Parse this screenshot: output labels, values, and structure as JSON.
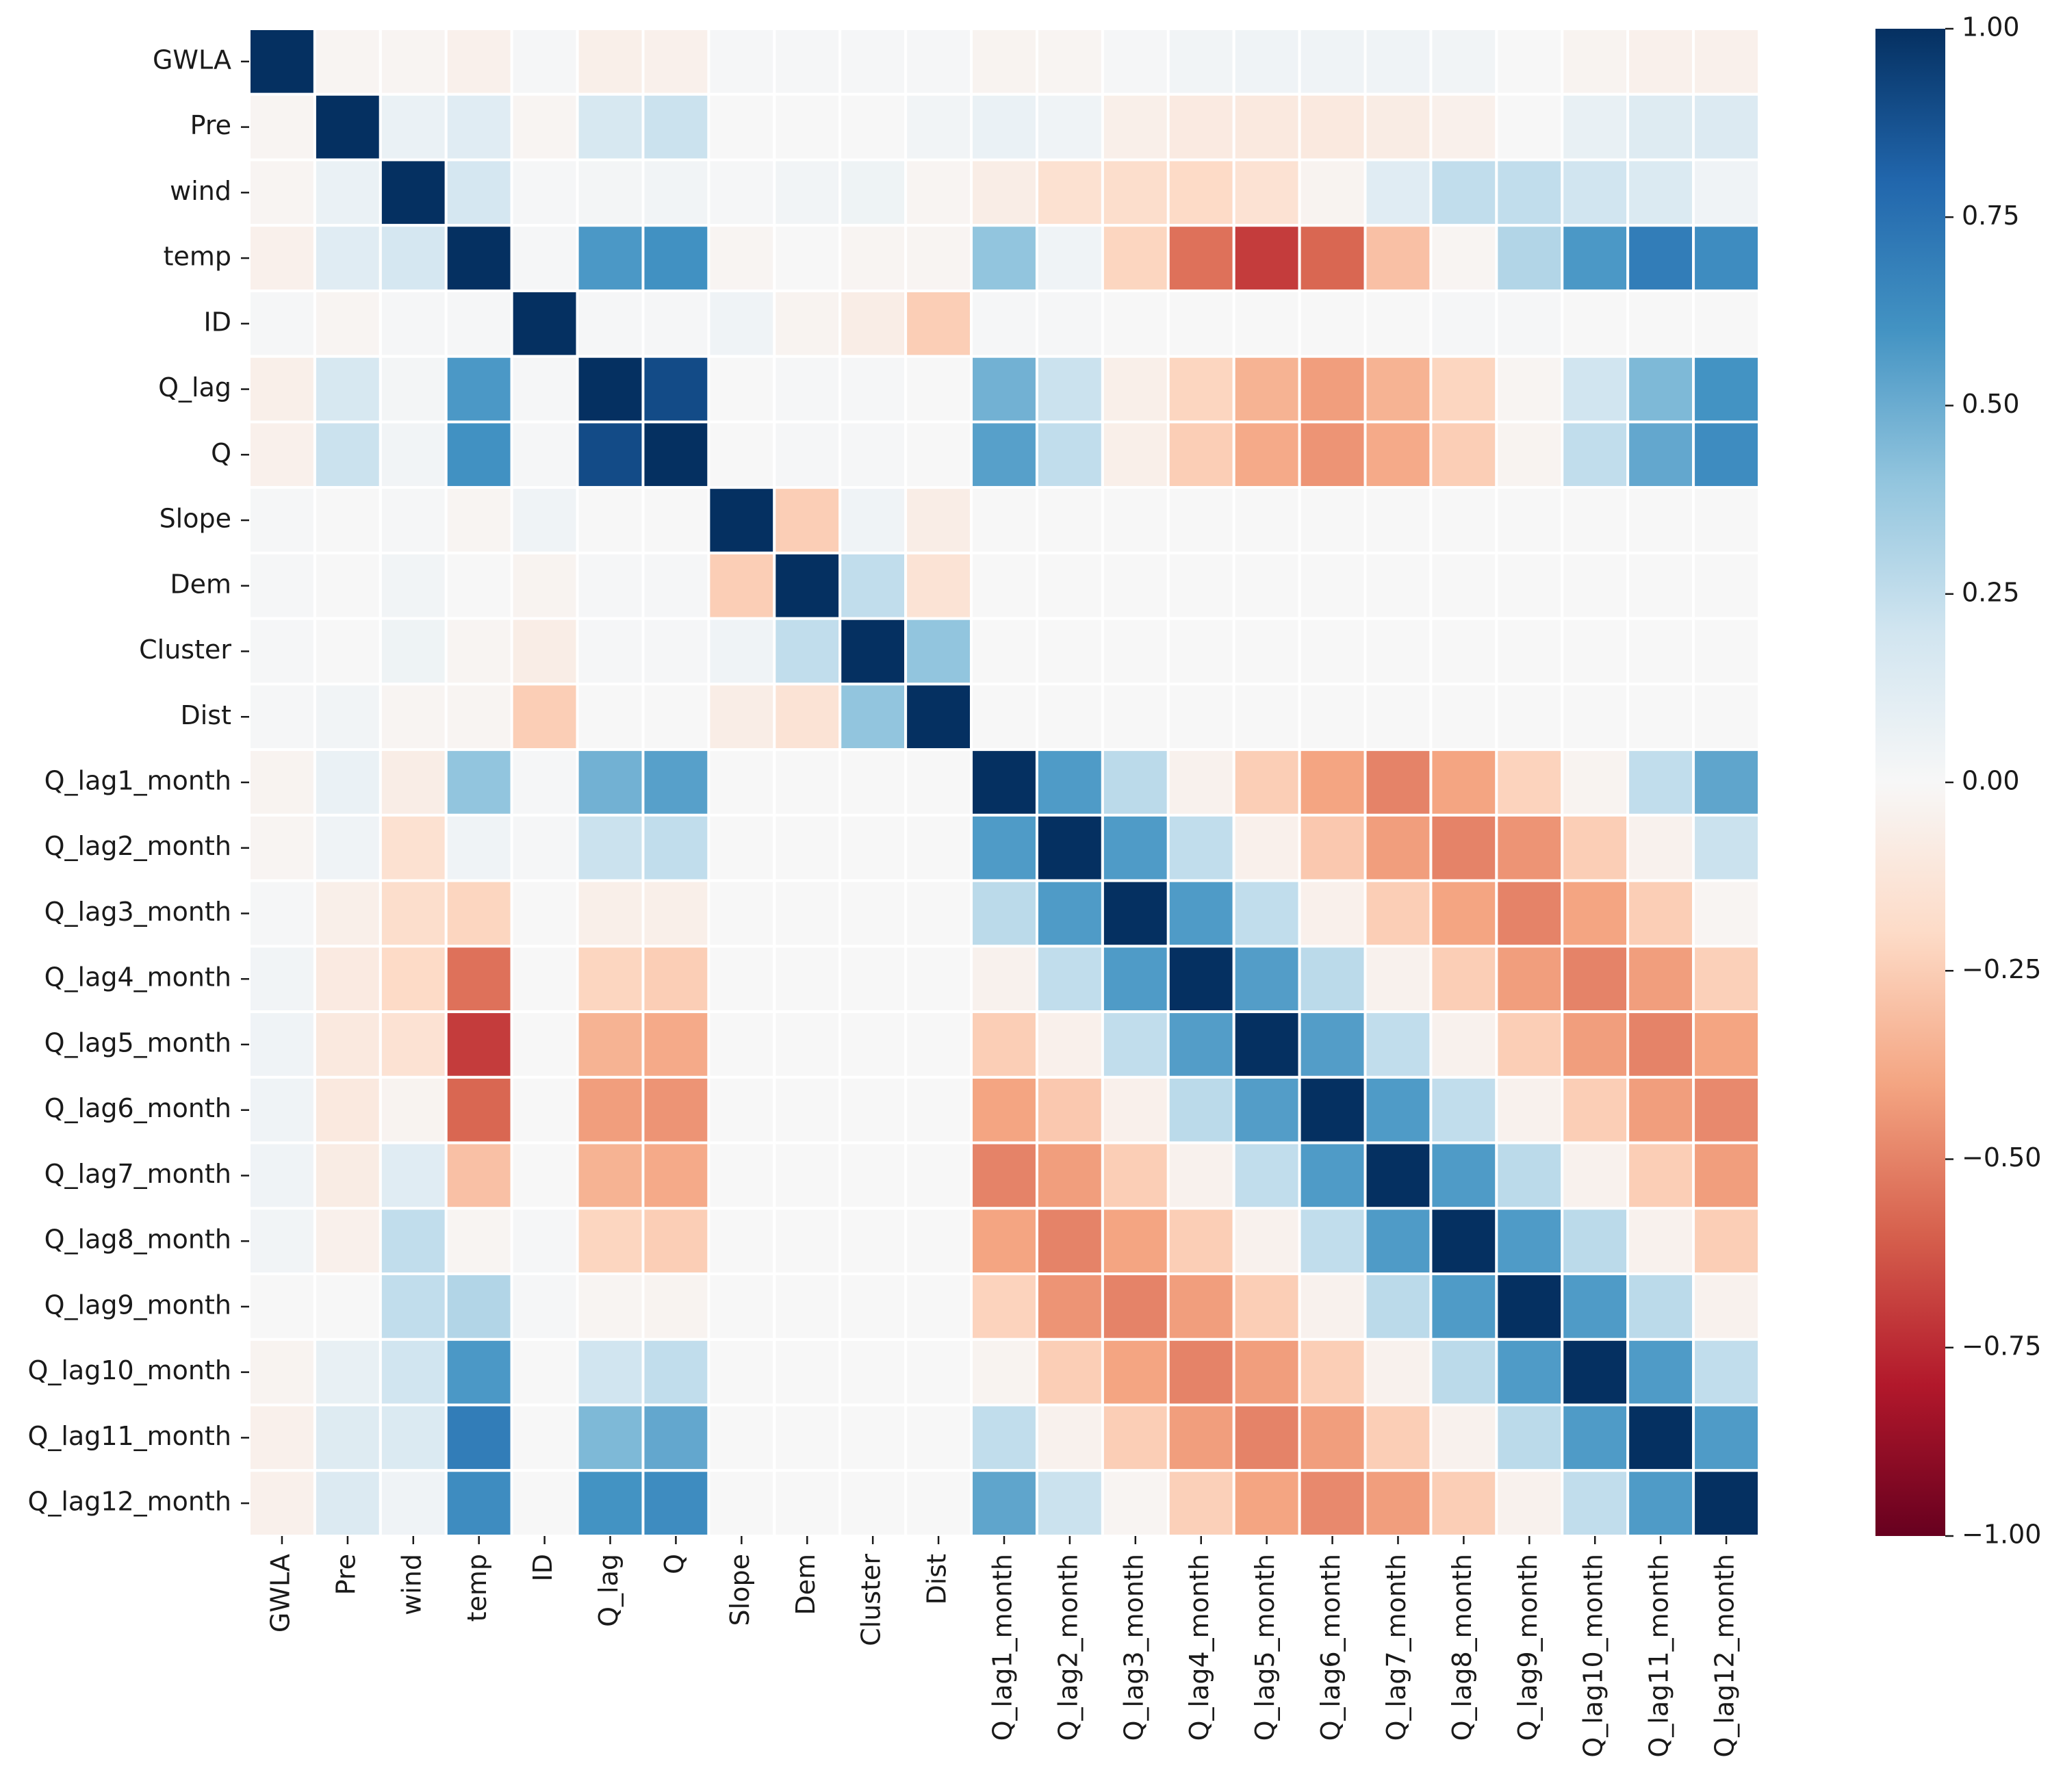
{
  "chart_data": {
    "type": "heatmap",
    "title": "",
    "xlabel": "",
    "ylabel": "",
    "labels": [
      "GWLA",
      "Pre",
      "wind",
      "temp",
      "ID",
      "Q_lag",
      "Q",
      "Slope",
      "Dem",
      "Cluster",
      "Dist",
      "Q_lag1_month",
      "Q_lag2_month",
      "Q_lag3_month",
      "Q_lag4_month",
      "Q_lag5_month",
      "Q_lag6_month",
      "Q_lag7_month",
      "Q_lag8_month",
      "Q_lag9_month",
      "Q_lag10_month",
      "Q_lag11_month",
      "Q_lag12_month"
    ],
    "matrix": [
      [
        1.0,
        -0.02,
        -0.02,
        -0.05,
        0.01,
        -0.06,
        -0.05,
        0.01,
        0.01,
        0.01,
        0.01,
        -0.03,
        -0.02,
        0.01,
        0.03,
        0.04,
        0.04,
        0.04,
        0.03,
        0.0,
        -0.03,
        -0.05,
        -0.05
      ],
      [
        -0.02,
        1.0,
        0.07,
        0.12,
        -0.02,
        0.17,
        0.22,
        0.0,
        0.0,
        0.0,
        0.03,
        0.07,
        0.04,
        -0.06,
        -0.09,
        -0.1,
        -0.1,
        -0.08,
        -0.05,
        0.0,
        0.08,
        0.13,
        0.14
      ],
      [
        -0.02,
        0.07,
        1.0,
        0.18,
        0.01,
        0.02,
        0.03,
        0.01,
        0.03,
        0.05,
        -0.02,
        -0.07,
        -0.16,
        -0.18,
        -0.2,
        -0.15,
        -0.03,
        0.12,
        0.25,
        0.25,
        0.2,
        0.15,
        0.04
      ],
      [
        -0.05,
        0.12,
        0.18,
        1.0,
        0.01,
        0.58,
        0.61,
        -0.02,
        0.0,
        -0.02,
        -0.02,
        0.4,
        0.04,
        -0.22,
        -0.55,
        -0.7,
        -0.58,
        -0.3,
        -0.02,
        0.3,
        0.58,
        0.7,
        0.63
      ],
      [
        0.01,
        -0.02,
        0.01,
        0.01,
        1.0,
        0.01,
        0.01,
        0.04,
        -0.03,
        -0.07,
        -0.25,
        0.01,
        0.01,
        0.0,
        0.0,
        0.0,
        0.0,
        0.0,
        0.01,
        0.01,
        0.0,
        0.0,
        0.0
      ],
      [
        -0.06,
        0.17,
        0.02,
        0.58,
        0.01,
        1.0,
        0.9,
        0.0,
        0.01,
        0.01,
        0.0,
        0.48,
        0.22,
        -0.06,
        -0.22,
        -0.35,
        -0.42,
        -0.35,
        -0.22,
        -0.02,
        0.2,
        0.45,
        0.6
      ],
      [
        -0.05,
        0.22,
        0.03,
        0.61,
        0.01,
        0.9,
        1.0,
        0.0,
        0.01,
        0.01,
        0.0,
        0.55,
        0.25,
        -0.06,
        -0.25,
        -0.38,
        -0.45,
        -0.38,
        -0.25,
        -0.03,
        0.25,
        0.52,
        0.63
      ],
      [
        0.01,
        0.0,
        0.01,
        -0.02,
        0.04,
        0.0,
        0.0,
        1.0,
        -0.25,
        0.04,
        -0.07,
        0.0,
        0.0,
        0.0,
        0.0,
        0.0,
        0.0,
        0.0,
        0.0,
        0.0,
        0.0,
        0.0,
        0.0
      ],
      [
        0.01,
        0.0,
        0.03,
        0.0,
        -0.03,
        0.01,
        0.01,
        -0.25,
        1.0,
        0.25,
        -0.14,
        0.0,
        0.0,
        0.0,
        0.0,
        0.0,
        0.0,
        0.0,
        0.0,
        0.0,
        0.0,
        0.0,
        0.0
      ],
      [
        0.01,
        0.0,
        0.05,
        -0.02,
        -0.07,
        0.01,
        0.01,
        0.04,
        0.25,
        1.0,
        0.4,
        0.0,
        0.0,
        0.0,
        0.0,
        0.0,
        0.0,
        0.0,
        0.0,
        0.0,
        0.0,
        0.0,
        0.0
      ],
      [
        0.01,
        0.03,
        -0.02,
        -0.02,
        -0.25,
        0.0,
        0.0,
        -0.07,
        -0.14,
        0.4,
        1.0,
        0.0,
        0.0,
        0.0,
        0.0,
        0.0,
        0.0,
        0.0,
        0.0,
        0.0,
        0.0,
        0.0,
        0.0
      ],
      [
        -0.03,
        0.07,
        -0.07,
        0.4,
        0.01,
        0.48,
        0.55,
        0.0,
        0.0,
        0.0,
        0.0,
        1.0,
        0.57,
        0.27,
        -0.04,
        -0.25,
        -0.4,
        -0.5,
        -0.4,
        -0.23,
        -0.03,
        0.25,
        0.53
      ],
      [
        -0.02,
        0.04,
        -0.16,
        0.04,
        0.01,
        0.22,
        0.25,
        0.0,
        0.0,
        0.0,
        0.0,
        0.57,
        1.0,
        0.57,
        0.25,
        -0.05,
        -0.27,
        -0.42,
        -0.5,
        -0.45,
        -0.25,
        -0.04,
        0.22
      ],
      [
        0.01,
        -0.06,
        -0.18,
        -0.22,
        0.0,
        -0.06,
        -0.06,
        0.0,
        0.0,
        0.0,
        0.0,
        0.27,
        0.57,
        1.0,
        0.57,
        0.25,
        -0.05,
        -0.25,
        -0.4,
        -0.5,
        -0.4,
        -0.25,
        -0.02
      ],
      [
        0.03,
        -0.09,
        -0.2,
        -0.55,
        0.0,
        -0.22,
        -0.25,
        0.0,
        0.0,
        0.0,
        0.0,
        -0.04,
        0.25,
        0.57,
        1.0,
        0.56,
        0.27,
        -0.04,
        -0.25,
        -0.42,
        -0.5,
        -0.42,
        -0.24
      ],
      [
        0.04,
        -0.1,
        -0.15,
        -0.7,
        0.0,
        -0.35,
        -0.38,
        0.0,
        0.0,
        0.0,
        0.0,
        -0.25,
        -0.05,
        0.25,
        0.56,
        1.0,
        0.56,
        0.25,
        -0.04,
        -0.25,
        -0.42,
        -0.5,
        -0.4
      ],
      [
        0.04,
        -0.1,
        -0.03,
        -0.58,
        0.0,
        -0.42,
        -0.45,
        0.0,
        0.0,
        0.0,
        0.0,
        -0.4,
        -0.27,
        -0.05,
        0.27,
        0.56,
        1.0,
        0.57,
        0.25,
        -0.04,
        -0.25,
        -0.42,
        -0.48
      ],
      [
        0.04,
        -0.08,
        0.12,
        -0.3,
        0.0,
        -0.35,
        -0.38,
        0.0,
        0.0,
        0.0,
        0.0,
        -0.5,
        -0.42,
        -0.25,
        -0.04,
        0.25,
        0.57,
        1.0,
        0.57,
        0.27,
        -0.04,
        -0.25,
        -0.42
      ],
      [
        0.03,
        -0.05,
        0.25,
        -0.02,
        0.01,
        -0.22,
        -0.25,
        0.0,
        0.0,
        0.0,
        0.0,
        -0.4,
        -0.5,
        -0.4,
        -0.25,
        -0.04,
        0.25,
        0.57,
        1.0,
        0.57,
        0.27,
        -0.04,
        -0.25
      ],
      [
        0.0,
        0.0,
        0.25,
        0.3,
        0.01,
        -0.02,
        -0.03,
        0.0,
        0.0,
        0.0,
        0.0,
        -0.23,
        -0.45,
        -0.5,
        -0.42,
        -0.25,
        -0.04,
        0.27,
        0.57,
        1.0,
        0.57,
        0.27,
        -0.04
      ],
      [
        -0.03,
        0.08,
        0.2,
        0.58,
        0.0,
        0.2,
        0.25,
        0.0,
        0.0,
        0.0,
        0.0,
        -0.03,
        -0.25,
        -0.4,
        -0.5,
        -0.42,
        -0.25,
        -0.04,
        0.27,
        0.57,
        1.0,
        0.57,
        0.25
      ],
      [
        -0.05,
        0.13,
        0.15,
        0.7,
        0.0,
        0.45,
        0.52,
        0.0,
        0.0,
        0.0,
        0.0,
        0.25,
        -0.04,
        -0.25,
        -0.42,
        -0.5,
        -0.42,
        -0.25,
        -0.04,
        0.27,
        0.57,
        1.0,
        0.57
      ],
      [
        -0.05,
        0.14,
        0.04,
        0.63,
        0.0,
        0.6,
        0.63,
        0.0,
        0.0,
        0.0,
        0.0,
        0.53,
        0.22,
        -0.02,
        -0.24,
        -0.4,
        -0.48,
        -0.42,
        -0.25,
        -0.04,
        0.25,
        0.57,
        1.0
      ]
    ],
    "vmin": -1.0,
    "vmax": 1.0,
    "colormap": "RdBu",
    "colorbar": {
      "ticks": [
        1.0,
        0.75,
        0.5,
        0.25,
        0.0,
        -0.25,
        -0.5,
        -0.75,
        -1.0
      ],
      "tick_labels": [
        "1.00",
        "0.75",
        "0.50",
        "0.25",
        "0.00",
        "−0.25",
        "−0.50",
        "−0.75",
        "−1.00"
      ]
    },
    "cell_border_color": "#ffffff",
    "colormap_stops": [
      "#67001f",
      "#b2182b",
      "#d6604d",
      "#f4a582",
      "#fddbc7",
      "#f7f7f7",
      "#d1e5f0",
      "#92c5de",
      "#4393c3",
      "#2166ac",
      "#053061"
    ]
  }
}
